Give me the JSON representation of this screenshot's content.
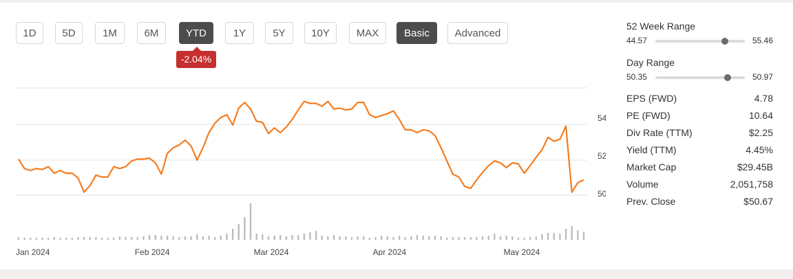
{
  "range_buttons": [
    {
      "label": "1D"
    },
    {
      "label": "5D"
    },
    {
      "label": "1M"
    },
    {
      "label": "6M"
    },
    {
      "label": "YTD",
      "active": true
    },
    {
      "label": "1Y"
    },
    {
      "label": "5Y"
    },
    {
      "label": "10Y"
    },
    {
      "label": "MAX"
    }
  ],
  "mode_buttons": [
    {
      "label": "Basic",
      "active": true
    },
    {
      "label": "Advanced"
    }
  ],
  "change_badge": "-2.04%",
  "week52": {
    "title": "52 Week Range",
    "low": "44.57",
    "high": "55.46",
    "current": 53.0
  },
  "day_range": {
    "title": "Day Range",
    "low": "50.35",
    "high": "50.97",
    "current": 50.85
  },
  "stats": [
    {
      "label": "EPS (FWD)",
      "value": "4.78"
    },
    {
      "label": "PE (FWD)",
      "value": "10.64"
    },
    {
      "label": "Div Rate (TTM)",
      "value": "$2.25"
    },
    {
      "label": "Yield (TTM)",
      "value": "4.45%"
    },
    {
      "label": "Market Cap",
      "value": "$29.45B"
    },
    {
      "label": "Volume",
      "value": "2,051,758"
    },
    {
      "label": "Prev. Close",
      "value": "$50.67"
    }
  ],
  "colors": {
    "price_line": "#f57c1f",
    "volume_bar": "#bdbdbd",
    "badge": "#c62f2f",
    "active_button": "#4c4c4c"
  },
  "chart_data": {
    "type": "line",
    "x_tick_labels": [
      "Jan 2024",
      "Feb 2024",
      "Mar 2024",
      "Apr 2024",
      "May 2024"
    ],
    "x_tick_index": [
      0,
      20,
      40,
      60,
      82
    ],
    "y_ticks": [
      50,
      52,
      54
    ],
    "ylim": [
      49.6,
      56.0
    ],
    "grid": true,
    "series": [
      {
        "type": "line",
        "values": [
          51.8,
          51.3,
          51.2,
          51.3,
          51.25,
          51.4,
          51.05,
          51.2,
          51.05,
          51.05,
          50.8,
          50.05,
          50.4,
          50.95,
          50.85,
          50.85,
          51.4,
          51.3,
          51.4,
          51.7,
          51.8,
          51.8,
          51.85,
          51.6,
          51.0,
          52.1,
          52.4,
          52.55,
          52.8,
          52.5,
          51.75,
          52.4,
          53.2,
          53.7,
          54.0,
          54.15,
          53.6,
          54.5,
          54.8,
          54.45,
          53.8,
          53.75,
          53.15,
          53.45,
          53.2,
          53.5,
          53.9,
          54.4,
          54.85,
          54.75,
          54.75,
          54.6,
          54.85,
          54.45,
          54.5,
          54.4,
          54.45,
          54.8,
          54.8,
          54.15,
          54.0,
          54.1,
          54.2,
          54.35,
          53.9,
          53.35,
          53.35,
          53.2,
          53.35,
          53.3,
          53.05,
          52.4,
          51.7,
          51.0,
          50.85,
          50.35,
          50.25,
          50.7,
          51.1,
          51.45,
          51.7,
          51.6,
          51.35,
          51.6,
          51.55,
          51.05,
          51.45,
          51.9,
          52.3,
          52.95,
          52.75,
          52.85,
          53.55,
          50.05,
          50.55,
          50.7
        ]
      }
    ],
    "volume": [
      4,
      3,
      3,
      3,
      3,
      3,
      4,
      3,
      3,
      3,
      4,
      4,
      4,
      4,
      3,
      3,
      3,
      5,
      4,
      4,
      4,
      5,
      7,
      7,
      6,
      6,
      5,
      4,
      5,
      5,
      8,
      5,
      6,
      4,
      6,
      9,
      16,
      23,
      33,
      53,
      9,
      8,
      5,
      6,
      7,
      5,
      7,
      7,
      9,
      11,
      13,
      6,
      5,
      7,
      5,
      5,
      4,
      5,
      5,
      3,
      4,
      6,
      5,
      4,
      6,
      4,
      5,
      7,
      6,
      5,
      6,
      5,
      3,
      4,
      4,
      4,
      4,
      4,
      5,
      6,
      9,
      5,
      6,
      5,
      3,
      3,
      4,
      5,
      8,
      10,
      10,
      9,
      16,
      20,
      14,
      12
    ]
  }
}
